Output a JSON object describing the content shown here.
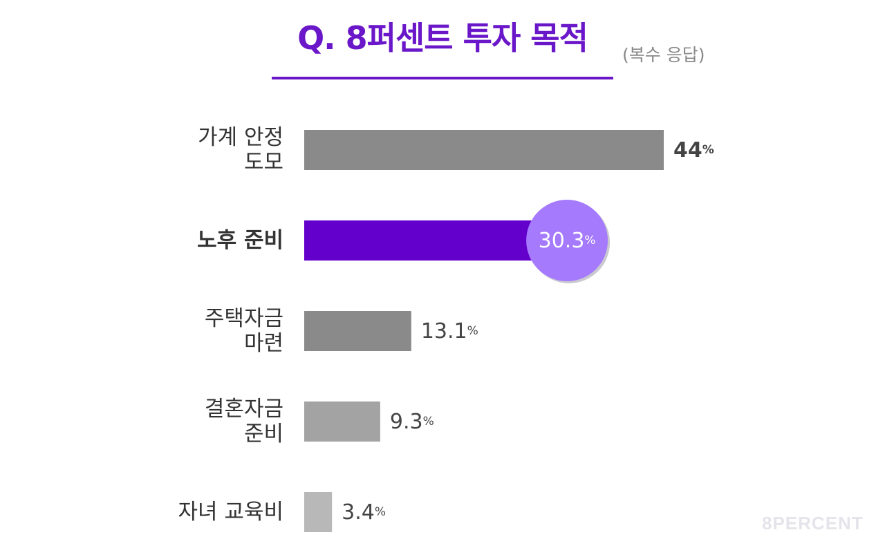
{
  "header": {
    "title": "Q. 8퍼센트 투자 목적",
    "subtitle": "(복수 응답)"
  },
  "watermark": "8PERCENT",
  "chart_data": {
    "type": "bar",
    "orientation": "horizontal",
    "categories": [
      [
        "가계 안정",
        "도모"
      ],
      [
        "노후 준비"
      ],
      [
        "주택자금",
        "마련"
      ],
      [
        "결혼자금",
        "준비"
      ],
      [
        "자녀 교육비"
      ]
    ],
    "values": [
      44,
      30.3,
      13.1,
      9.3,
      3.4
    ],
    "value_labels": [
      "44",
      "30.3",
      "13.1",
      "9.3",
      "3.4"
    ],
    "unit": "%",
    "highlight_index": 1,
    "colors": {
      "bars": [
        "#8a8a8a",
        "#6400cc",
        "#8a8a8a",
        "#a3a3a3",
        "#b8b8b8"
      ],
      "highlight_badge": "#a57afc",
      "label_text": "#333333",
      "value_text": "#444444"
    },
    "grid": false,
    "legend": "none"
  }
}
